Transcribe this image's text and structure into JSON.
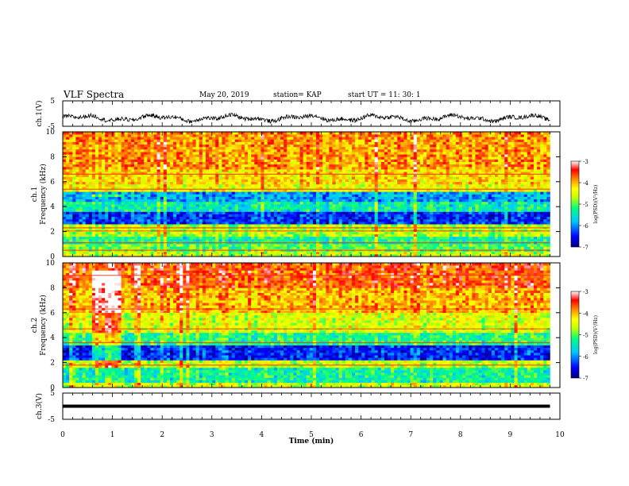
{
  "header": {
    "title": "VLF Spectra",
    "date": "May 20, 2019",
    "station": "station= KAP",
    "start_time": "start  UT  =   11: 30: 1"
  },
  "chart_data": [
    {
      "type": "line",
      "panel": "ch1-waveform",
      "ylabel": "ch.1(V)",
      "xlim": [
        0,
        10
      ],
      "ylim": [
        -5,
        5
      ],
      "yticks": [
        "5",
        "-5"
      ],
      "color": "#000000",
      "description_of_trace": "noisy waveform fluctuating roughly between -4 and -0.5 V for t in [0, 9.8] min",
      "x_end": 9.8,
      "approx_mean": -1.8,
      "approx_amplitude": 1.6
    },
    {
      "type": "heatmap",
      "panel": "ch1-spectrogram",
      "ylabel": "ch.1\nFrequency (kHz)",
      "xlim": [
        0,
        10
      ],
      "ylim": [
        0,
        10
      ],
      "yticks": [
        "0",
        "2",
        "4",
        "6",
        "8",
        "10"
      ],
      "x_end": 9.8,
      "colorbar": {
        "label": "log(PSD)(V²/Hz)",
        "range": [
          -7,
          -3
        ],
        "ticks": [
          "-3",
          "-4",
          "-5",
          "-6",
          "-7"
        ],
        "colors": [
          "#000080",
          "#0000ff",
          "#00c8ff",
          "#00ff80",
          "#c8ff00",
          "#ffff00",
          "#ff8000",
          "#ff0000",
          "#ffffff"
        ]
      },
      "frequency_levels": [
        {
          "f": [
            0.0,
            0.4
          ],
          "level": -4.6
        },
        {
          "f": [
            0.4,
            1.0
          ],
          "level": -5.0
        },
        {
          "f": [
            1.0,
            1.6
          ],
          "level": -5.3
        },
        {
          "f": [
            1.6,
            2.6
          ],
          "level": -4.7
        },
        {
          "f": [
            2.6,
            3.6
          ],
          "level": -6.4
        },
        {
          "f": [
            3.6,
            4.4
          ],
          "level": -5.4
        },
        {
          "f": [
            4.4,
            5.2
          ],
          "level": -5.9
        },
        {
          "f": [
            5.2,
            5.8
          ],
          "level": -4.4
        },
        {
          "f": [
            5.8,
            7.0
          ],
          "level": -4.2
        },
        {
          "f": [
            7.0,
            10.0
          ],
          "level": -3.9
        }
      ],
      "lines_khz": [
        0.5,
        1.1,
        2.05,
        2.3,
        5.4,
        6.6
      ],
      "burst": {
        "t": [
          0.6,
          1.2
        ],
        "f": [
          4.9,
          5.1
        ]
      }
    },
    {
      "type": "heatmap",
      "panel": "ch2-spectrogram",
      "ylabel": "ch.2\nFrequency (kHz)",
      "xlim": [
        0,
        10
      ],
      "ylim": [
        0,
        10
      ],
      "yticks": [
        "0",
        "2",
        "4",
        "6",
        "8",
        "10"
      ],
      "x_end": 9.8,
      "colorbar": {
        "label": "log(PSD)(V²/Hz)",
        "range": [
          -7,
          -3
        ],
        "ticks": [
          "-3",
          "-4",
          "-5",
          "-6",
          "-7"
        ]
      },
      "frequency_levels": [
        {
          "f": [
            0.0,
            0.4
          ],
          "level": -4.5
        },
        {
          "f": [
            0.4,
            1.6
          ],
          "level": -5.3
        },
        {
          "f": [
            1.6,
            2.2
          ],
          "level": -4.6
        },
        {
          "f": [
            2.2,
            3.4
          ],
          "level": -6.4
        },
        {
          "f": [
            3.4,
            4.4
          ],
          "level": -5.2
        },
        {
          "f": [
            4.4,
            6.0
          ],
          "level": -4.5
        },
        {
          "f": [
            6.0,
            8.0
          ],
          "level": -4.0
        },
        {
          "f": [
            8.0,
            10.0
          ],
          "level": -3.6
        }
      ],
      "lines_khz": [
        1.8,
        3.6,
        4.7,
        6.3,
        9.0
      ],
      "burst": {
        "t": [
          0.6,
          1.2
        ],
        "f": [
          1.7,
          9.3
        ]
      }
    },
    {
      "type": "line",
      "panel": "ch3-waveform",
      "ylabel": "ch.3(V)",
      "xlim": [
        0,
        10
      ],
      "ylim": [
        -5,
        5
      ],
      "yticks": [
        "5",
        "-5"
      ],
      "constant_value": 0,
      "x_end": 9.8
    }
  ],
  "axes": {
    "xlabel": "Time  (min)",
    "xticks": [
      "0",
      "1",
      "2",
      "3",
      "4",
      "5",
      "6",
      "7",
      "8",
      "9",
      "10"
    ]
  }
}
